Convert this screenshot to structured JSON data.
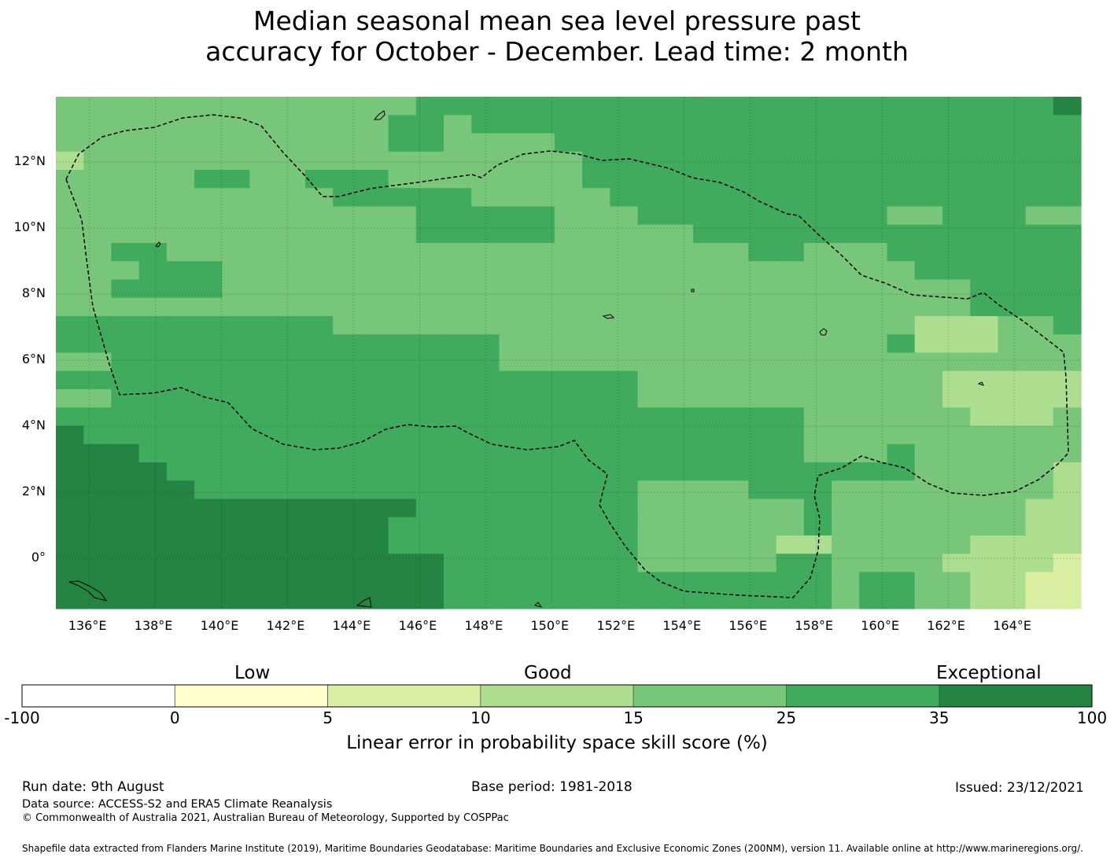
{
  "title": {
    "line1": "Median seasonal mean sea level pressure past",
    "line2": "accuracy for October - December. Lead time: 2 month"
  },
  "map": {
    "lon_ticks": [
      "136°E",
      "138°E",
      "140°E",
      "142°E",
      "144°E",
      "146°E",
      "148°E",
      "150°E",
      "152°E",
      "154°E",
      "156°E",
      "158°E",
      "160°E",
      "162°E",
      "164°E"
    ],
    "lat_ticks": [
      "12°N",
      "10°N",
      "8°N",
      "6°N",
      "4°N",
      "2°N",
      "0°"
    ],
    "lon_range": [
      134.98,
      166.02
    ],
    "lat_range": [
      -1.52,
      13.98
    ],
    "grid": true
  },
  "colorbar": {
    "categories": [
      "Low",
      "Good",
      "Exceptional"
    ],
    "tick_labels": [
      "-100",
      "0",
      "5",
      "10",
      "15",
      "25",
      "35",
      "100"
    ],
    "colors": [
      "#ffffff",
      "#ffffcc",
      "#d9f0a3",
      "#addd8e",
      "#78c679",
      "#41ab5d",
      "#238443"
    ],
    "label": "Linear error in probability space skill score (%)"
  },
  "footer": {
    "run_date": "Run date: 9th August",
    "base_period": "Base period: 1981-2018",
    "issued": "Issued: 23/12/2021",
    "data_source": "Data source: ACCESS-S2 and ERA5 Climate Reanalysis",
    "copyright": "© Commonwealth of Australia 2021, Australian Bureau of Meteorology, Supported by COSPPac",
    "shapefile": "Shapefile data extracted from Flanders Marine Institute (2019), Maritime Boundaries Geodatabase: Maritime Boundaries and Exclusive Economic Zones (200NM), version 11. Available online at http://www.marineregions.org/."
  }
}
